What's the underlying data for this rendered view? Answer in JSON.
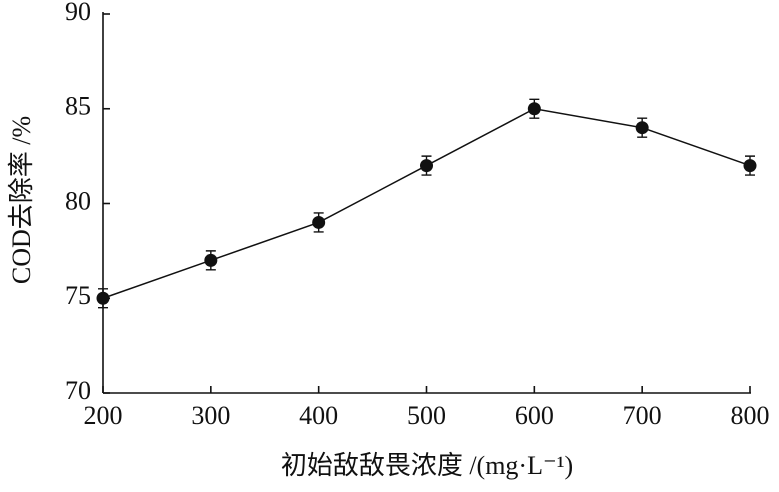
{
  "chart_data": {
    "type": "line",
    "xlabel": "初始敌敌畏浓度 /(mg·L⁻¹)",
    "ylabel": "COD去除率 /%",
    "x": [
      200,
      300,
      400,
      500,
      600,
      700,
      800
    ],
    "series": [
      {
        "color": "#111111",
        "values": [
          75,
          77,
          79,
          82,
          85,
          84,
          82
        ],
        "errors": [
          0.5,
          0.5,
          0.5,
          0.5,
          0.5,
          0.5,
          0.5
        ]
      }
    ],
    "xlim": [
      200,
      800
    ],
    "xticks": [
      200,
      300,
      400,
      500,
      600,
      700,
      800
    ],
    "ylim": [
      70,
      90
    ],
    "yticks": [
      70,
      75,
      80,
      85,
      90
    ]
  }
}
